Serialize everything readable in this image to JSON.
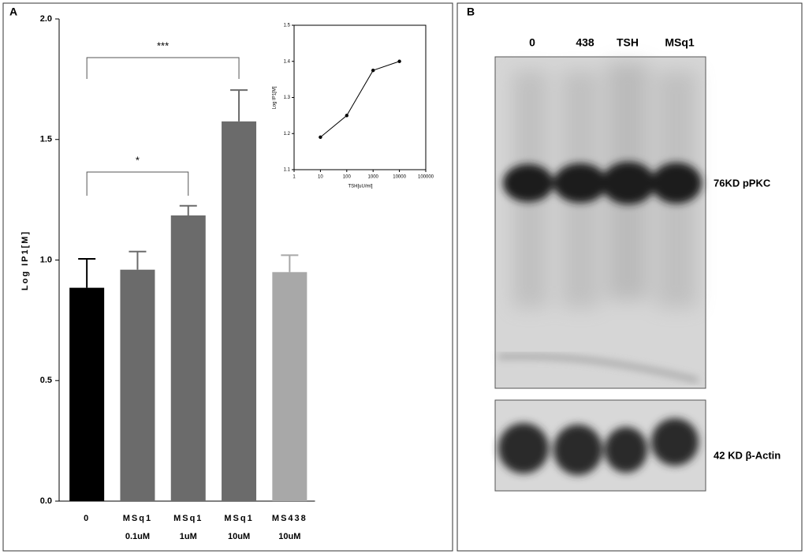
{
  "chart_data": [
    {
      "type": "bar",
      "label": "A",
      "y_label": "Log IP1[M]",
      "categories": [
        [
          "0"
        ],
        [
          "MSq1",
          "0.1uM"
        ],
        [
          "MSq1",
          "1uM"
        ],
        [
          "MSq1",
          "10uM"
        ],
        [
          "MS438",
          "10uM"
        ]
      ],
      "values": [
        0.885,
        0.96,
        1.185,
        1.575,
        0.95
      ],
      "errors": [
        0.12,
        0.075,
        0.04,
        0.13,
        0.07
      ],
      "colors": [
        "#000000",
        "#6b6b6b",
        "#6b6b6b",
        "#6b6b6b",
        "#a8a8a8"
      ],
      "ylim": [
        0,
        2
      ],
      "yticks": [
        {
          "value": 0,
          "label": "0.0"
        },
        {
          "value": 0.5,
          "label": "0.5"
        },
        {
          "value": 1,
          "label": "1.0"
        },
        {
          "value": 1.5,
          "label": "1.5"
        },
        {
          "value": 2,
          "label": "2.0"
        }
      ],
      "annotations": [
        "*",
        "***"
      ]
    },
    {
      "type": "line",
      "x_label": "TSH[uU/ml]",
      "y_label": "Log IP1[M]",
      "xscale": "log",
      "x": [
        10,
        100,
        1000,
        10000
      ],
      "values": [
        1.19,
        1.25,
        1.375,
        1.4
      ],
      "color": "#000000",
      "xlim": [
        1,
        100000
      ],
      "xticks": [
        1,
        10,
        100,
        1000,
        10000,
        100000
      ],
      "ylim": [
        1.1,
        1.5
      ],
      "yticks": [
        1.1,
        1.2,
        1.3,
        1.4,
        1.5
      ]
    }
  ],
  "blot": {
    "label": "B",
    "lanes": [
      "0",
      "438",
      "TSH",
      "MSq1"
    ],
    "bands": [
      "76KD pPKC",
      "42 KD β-Actin"
    ]
  }
}
